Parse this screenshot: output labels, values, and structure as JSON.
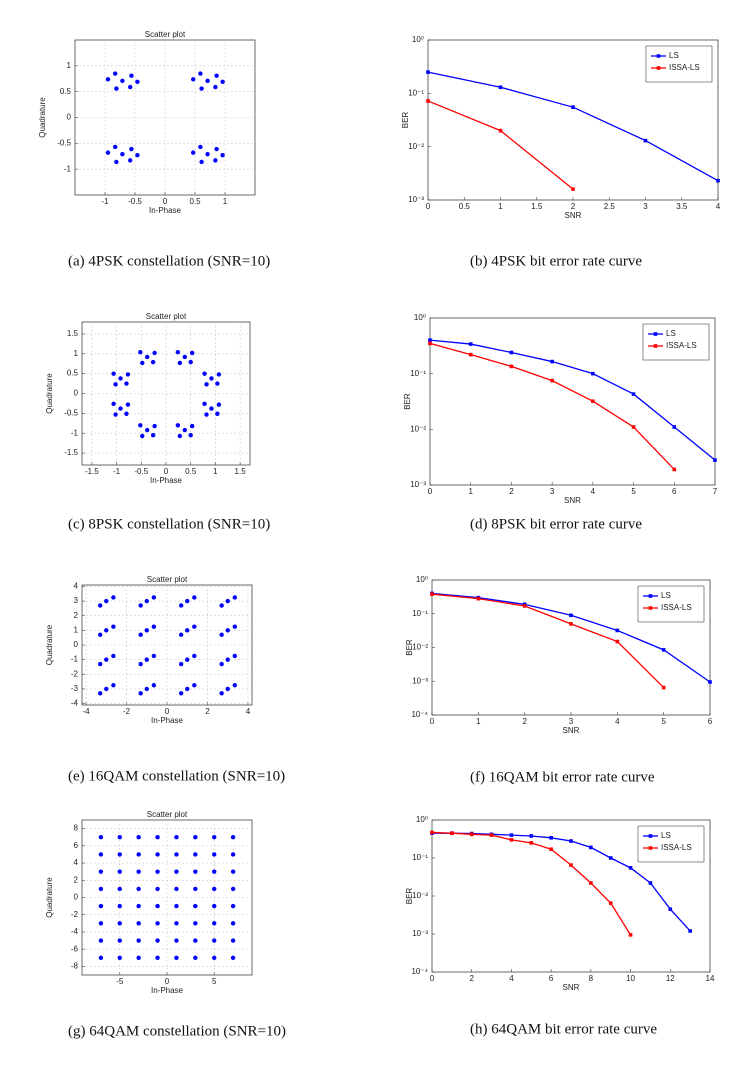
{
  "chart_data": [
    {
      "type": "scatter",
      "title": "Scatter plot",
      "xlabel": "In-Phase",
      "ylabel": "Quadrature",
      "caption": "(a) 4PSK constellation (SNR=10)",
      "color": "#0000ff",
      "grid": true,
      "xlim": [
        -1.5,
        1.5
      ],
      "ylim": [
        -1.5,
        1.5
      ],
      "xticks": [
        -1,
        -0.5,
        0,
        0.5,
        1
      ],
      "yticks": [
        -1,
        -0.5,
        0,
        0.5,
        1
      ],
      "x": [
        -0.71,
        -0.56,
        -0.83,
        -0.81,
        -0.58,
        -0.46,
        -0.95,
        0.71,
        0.86,
        0.59,
        0.61,
        0.84,
        0.96,
        0.47,
        -0.71,
        -0.56,
        -0.83,
        -0.81,
        -0.58,
        -0.46,
        -0.95,
        0.71,
        0.86,
        0.59,
        0.61,
        0.84,
        0.96,
        0.47
      ],
      "y": [
        0.71,
        0.81,
        0.85,
        0.56,
        0.59,
        0.69,
        0.74,
        0.71,
        0.81,
        0.85,
        0.56,
        0.59,
        0.69,
        0.74,
        -0.71,
        -0.61,
        -0.57,
        -0.86,
        -0.83,
        -0.73,
        -0.68,
        -0.71,
        -0.61,
        -0.57,
        -0.86,
        -0.83,
        -0.73,
        -0.68
      ]
    },
    {
      "type": "line",
      "xlabel": "SNR",
      "ylabel": "BER",
      "caption": "(b) 4PSK bit error rate curve",
      "yscale": "log",
      "legend": "upper right",
      "grid": false,
      "xlim": [
        0,
        4
      ],
      "xticks": [
        0,
        0.5,
        1,
        1.5,
        2,
        2.5,
        3,
        3.5,
        4
      ],
      "ylim": [
        0.001,
        1
      ],
      "yticks": [
        {
          "value": 0.001,
          "label": "10⁻³"
        },
        {
          "value": 0.01,
          "label": "10⁻²"
        },
        {
          "value": 0.1,
          "label": "10⁻¹"
        },
        {
          "value": 1,
          "label": "10⁰"
        }
      ],
      "series": [
        {
          "name": "LS",
          "color": "#0000ff",
          "x": [
            0,
            1,
            2,
            3,
            4
          ],
          "values": [
            0.25,
            0.13,
            0.055,
            0.013,
            0.0023
          ]
        },
        {
          "name": "ISSA-LS",
          "color": "#ff0000",
          "x": [
            0,
            1,
            2
          ],
          "values": [
            0.072,
            0.02,
            0.0016
          ]
        }
      ]
    },
    {
      "type": "scatter",
      "title": "Scatter plot",
      "xlabel": "In-Phase",
      "ylabel": "Quadrature",
      "caption": "(c) 8PSK constellation (SNR=10)",
      "color": "#0000ff",
      "grid": true,
      "xlim": [
        -1.7,
        1.7
      ],
      "ylim": [
        -1.8,
        1.8
      ],
      "xticks": [
        -1.5,
        -1,
        -0.5,
        0,
        0.5,
        1,
        1.5
      ],
      "yticks": [
        -1.5,
        -1,
        -0.5,
        0,
        0.5,
        1,
        1.5
      ],
      "x": [
        0.92,
        1.07,
        0.78,
        0.82,
        1.04,
        0.38,
        0.53,
        0.24,
        0.28,
        0.5,
        -0.38,
        -0.23,
        -0.52,
        -0.48,
        -0.26,
        -0.92,
        -0.77,
        -1.06,
        -1.02,
        -0.8,
        -0.92,
        -0.77,
        -1.06,
        -1.02,
        -0.8,
        -0.38,
        -0.23,
        -0.52,
        -0.48,
        -0.26,
        0.38,
        0.53,
        0.24,
        0.28,
        0.5,
        0.92,
        1.07,
        0.78,
        0.82,
        1.04
      ],
      "y": [
        0.38,
        0.48,
        0.5,
        0.23,
        0.25,
        0.92,
        1.02,
        1.04,
        0.77,
        0.79,
        0.92,
        1.02,
        1.04,
        0.77,
        0.79,
        0.38,
        0.48,
        0.5,
        0.23,
        0.25,
        -0.38,
        -0.28,
        -0.26,
        -0.53,
        -0.51,
        -0.92,
        -0.82,
        -0.8,
        -1.07,
        -1.05,
        -0.92,
        -0.82,
        -0.8,
        -1.07,
        -1.05,
        -0.38,
        -0.28,
        -0.26,
        -0.53,
        -0.51
      ]
    },
    {
      "type": "line",
      "xlabel": "SNR",
      "ylabel": "BER",
      "caption": "(d) 8PSK bit error rate curve",
      "yscale": "log",
      "legend": "upper right",
      "grid": false,
      "xlim": [
        0,
        7
      ],
      "xticks": [
        0,
        1,
        2,
        3,
        4,
        5,
        6,
        7
      ],
      "ylim": [
        0.001,
        1
      ],
      "yticks": [
        {
          "value": 0.001,
          "label": "10⁻³"
        },
        {
          "value": 0.01,
          "label": "10⁻²"
        },
        {
          "value": 0.1,
          "label": "10⁻¹"
        },
        {
          "value": 1,
          "label": "10⁰"
        }
      ],
      "series": [
        {
          "name": "LS",
          "color": "#0000ff",
          "x": [
            0,
            1,
            2,
            3,
            4,
            5,
            6,
            7
          ],
          "values": [
            0.4,
            0.34,
            0.24,
            0.165,
            0.1,
            0.043,
            0.011,
            0.0028
          ]
        },
        {
          "name": "ISSA-LS",
          "color": "#ff0000",
          "x": [
            0,
            1,
            2,
            3,
            4,
            5,
            6
          ],
          "values": [
            0.35,
            0.22,
            0.135,
            0.075,
            0.032,
            0.011,
            0.0019
          ]
        }
      ]
    },
    {
      "type": "scatter",
      "title": "Scatter plot",
      "xlabel": "In-Phase",
      "ylabel": "Quadrature",
      "caption": "(e) 16QAM constellation (SNR=10)",
      "color": "#0000ff",
      "grid": true,
      "xlim": [
        -4.2,
        4.2
      ],
      "ylim": [
        -4.1,
        4.1
      ],
      "xticks": [
        -4,
        -2,
        0,
        2,
        4
      ],
      "yticks": [
        -4,
        -3,
        -2,
        -1,
        0,
        1,
        2,
        3,
        4
      ],
      "x": [
        -3,
        -2.65,
        -3.3,
        -1,
        -0.65,
        -1.3,
        1,
        1.35,
        0.7,
        3,
        3.35,
        2.7,
        -3,
        -2.65,
        -3.3,
        -1,
        -0.65,
        -1.3,
        1,
        1.35,
        0.7,
        3,
        3.35,
        2.7,
        -3,
        -2.65,
        -3.3,
        -1,
        -0.65,
        -1.3,
        1,
        1.35,
        0.7,
        3,
        3.35,
        2.7,
        -3,
        -2.65,
        -3.3,
        -1,
        -0.65,
        -1.3,
        1,
        1.35,
        0.7,
        3,
        3.35,
        2.7
      ],
      "y": [
        3,
        3.25,
        2.7,
        3,
        3.25,
        2.7,
        3,
        3.25,
        2.7,
        3,
        3.25,
        2.7,
        1,
        1.25,
        0.7,
        1,
        1.25,
        0.7,
        1,
        1.25,
        0.7,
        1,
        1.25,
        0.7,
        -1,
        -0.75,
        -1.3,
        -1,
        -0.75,
        -1.3,
        -1,
        -0.75,
        -1.3,
        -1,
        -0.75,
        -1.3,
        -3,
        -2.75,
        -3.3,
        -3,
        -2.75,
        -3.3,
        -3,
        -2.75,
        -3.3,
        -3,
        -2.75,
        -3.3
      ]
    },
    {
      "type": "line",
      "xlabel": "SNR",
      "ylabel": "BER",
      "caption": "(f) 16QAM bit error rate curve",
      "yscale": "log",
      "legend": "upper right",
      "grid": false,
      "xlim": [
        0,
        6
      ],
      "xticks": [
        0,
        1,
        2,
        3,
        4,
        5,
        6
      ],
      "ylim": [
        0.0001,
        1
      ],
      "yticks": [
        {
          "value": 0.0001,
          "label": "10⁻⁴"
        },
        {
          "value": 0.001,
          "label": "10⁻³"
        },
        {
          "value": 0.01,
          "label": "10⁻²"
        },
        {
          "value": 0.1,
          "label": "10⁻¹"
        },
        {
          "value": 1,
          "label": "10⁰"
        }
      ],
      "series": [
        {
          "name": "LS",
          "color": "#0000ff",
          "x": [
            0,
            1,
            2,
            3,
            4,
            5,
            6
          ],
          "values": [
            0.4,
            0.3,
            0.19,
            0.09,
            0.032,
            0.0085,
            0.00095
          ]
        },
        {
          "name": "ISSA-LS",
          "color": "#ff0000",
          "x": [
            0,
            1,
            2,
            3,
            4,
            5
          ],
          "values": [
            0.38,
            0.28,
            0.17,
            0.05,
            0.015,
            0.00065
          ]
        }
      ]
    },
    {
      "type": "scatter",
      "title": "Scatter plot",
      "xlabel": "In-Phase",
      "ylabel": "Quadrature",
      "caption": "(g) 64QAM constellation (SNR=10)",
      "color": "#0000ff",
      "grid": true,
      "xlim": [
        -9,
        9
      ],
      "ylim": [
        -9,
        9
      ],
      "xticks": [
        -5,
        0,
        5
      ],
      "yticks": [
        -8,
        -6,
        -4,
        -2,
        0,
        2,
        4,
        6,
        8
      ],
      "x": [
        -7,
        -5,
        -3,
        -1,
        1,
        3,
        5,
        7,
        -7,
        -5,
        -3,
        -1,
        1,
        3,
        5,
        7,
        -7,
        -5,
        -3,
        -1,
        1,
        3,
        5,
        7,
        -7,
        -5,
        -3,
        -1,
        1,
        3,
        5,
        7,
        -7,
        -5,
        -3,
        -1,
        1,
        3,
        5,
        7,
        -7,
        -5,
        -3,
        -1,
        1,
        3,
        5,
        7,
        -7,
        -5,
        -3,
        -1,
        1,
        3,
        5,
        7,
        -7,
        -5,
        -3,
        -1,
        1,
        3,
        5,
        7
      ],
      "y": [
        7,
        7,
        7,
        7,
        7,
        7,
        7,
        7,
        5,
        5,
        5,
        5,
        5,
        5,
        5,
        5,
        3,
        3,
        3,
        3,
        3,
        3,
        3,
        3,
        1,
        1,
        1,
        1,
        1,
        1,
        1,
        1,
        -1,
        -1,
        -1,
        -1,
        -1,
        -1,
        -1,
        -1,
        -3,
        -3,
        -3,
        -3,
        -3,
        -3,
        -3,
        -3,
        -5,
        -5,
        -5,
        -5,
        -5,
        -5,
        -5,
        -5,
        -7,
        -7,
        -7,
        -7,
        -7,
        -7,
        -7,
        -7
      ]
    },
    {
      "type": "line",
      "xlabel": "SNR",
      "ylabel": "BER",
      "caption": "(h) 64QAM bit error rate curve",
      "yscale": "log",
      "legend": "upper right",
      "grid": false,
      "xlim": [
        0,
        14
      ],
      "xticks": [
        0,
        2,
        4,
        6,
        8,
        10,
        12,
        14
      ],
      "ylim": [
        0.0001,
        1
      ],
      "yticks": [
        {
          "value": 0.0001,
          "label": "10⁻⁴"
        },
        {
          "value": 0.001,
          "label": "10⁻³"
        },
        {
          "value": 0.01,
          "label": "10⁻²"
        },
        {
          "value": 0.1,
          "label": "10⁻¹"
        },
        {
          "value": 1,
          "label": "10⁰"
        }
      ],
      "series": [
        {
          "name": "LS",
          "color": "#0000ff",
          "x": [
            0,
            1,
            2,
            3,
            4,
            5,
            6,
            7,
            8,
            9,
            10,
            11,
            12,
            13
          ],
          "values": [
            0.45,
            0.45,
            0.44,
            0.42,
            0.4,
            0.38,
            0.34,
            0.28,
            0.19,
            0.1,
            0.055,
            0.022,
            0.0045,
            0.0012
          ]
        },
        {
          "name": "ISSA-LS",
          "color": "#ff0000",
          "x": [
            0,
            1,
            2,
            3,
            4,
            5,
            6,
            7,
            8,
            9,
            10
          ],
          "values": [
            0.47,
            0.45,
            0.42,
            0.4,
            0.3,
            0.25,
            0.17,
            0.065,
            0.022,
            0.0065,
            0.00095
          ]
        }
      ]
    }
  ]
}
